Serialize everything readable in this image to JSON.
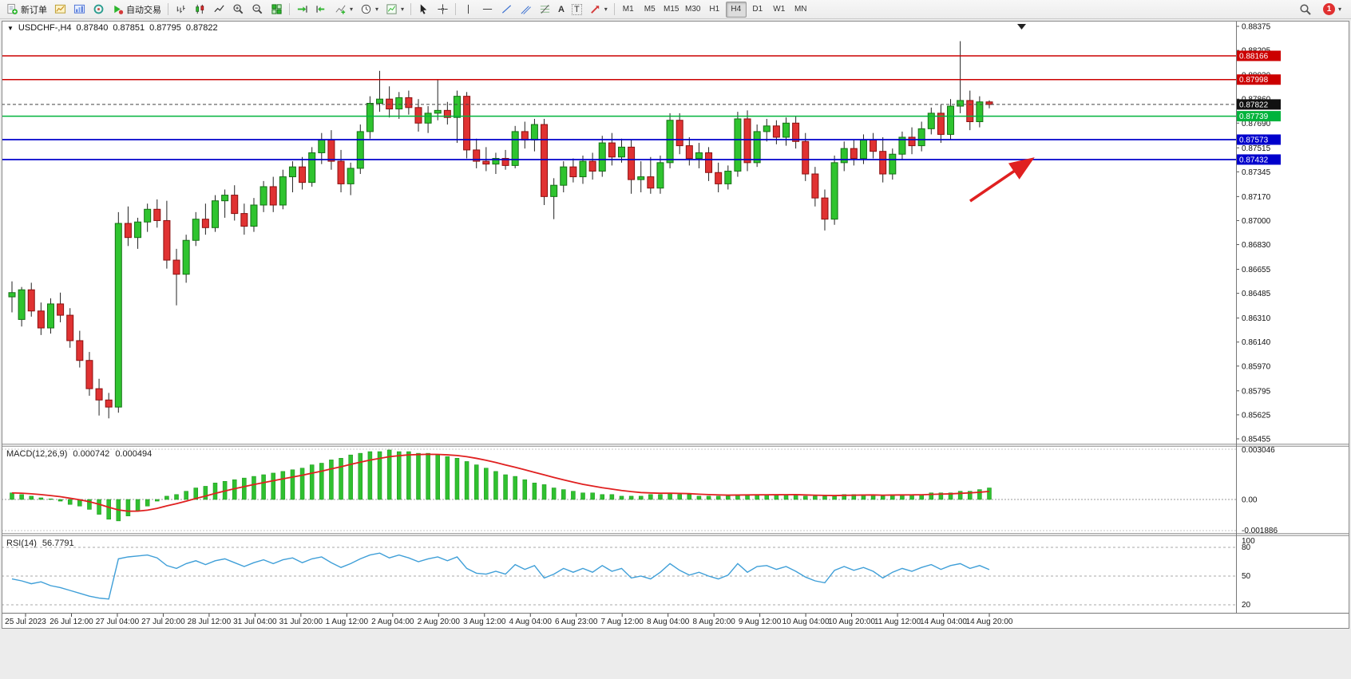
{
  "toolbar": {
    "new_order": "新订单",
    "auto_trading": "自动交易",
    "text_tool": "A",
    "label_tool": "T",
    "timeframes": [
      "M1",
      "M5",
      "M15",
      "M30",
      "H1",
      "H4",
      "D1",
      "W1",
      "MN"
    ],
    "active_timeframe": "H4",
    "notification_count": "1"
  },
  "icons": {
    "caret": "▾",
    "collapse": "▼"
  },
  "chart": {
    "header": {
      "symbol_period": "USDCHF-,H4",
      "open": "0.87840",
      "high": "0.87851",
      "low": "0.87795",
      "close": "0.87822"
    },
    "price_axis": {
      "max": 0.88375,
      "min": 0.85455,
      "ticks": [
        0.88375,
        0.88205,
        0.8803,
        0.8786,
        0.8769,
        0.87515,
        0.87345,
        0.8717,
        0.87,
        0.8683,
        0.86655,
        0.86485,
        0.8631,
        0.8614,
        0.8597,
        0.85795,
        0.85625,
        0.85455
      ]
    },
    "hlines": [
      {
        "label": "0.88166",
        "value": 0.88166,
        "color": "#cc0000"
      },
      {
        "label": "0.87998",
        "value": 0.87998,
        "color": "#cc0000"
      },
      {
        "label": "0.87739",
        "value": 0.87739,
        "color": "#00b33c"
      },
      {
        "label": "0.87573",
        "value": 0.87573,
        "color": "#0000cc"
      },
      {
        "label": "0.87432",
        "value": 0.87432,
        "color": "#0000cc"
      }
    ],
    "current_price": {
      "label": "0.87822",
      "value": 0.87822,
      "line_color": "#444444",
      "badge_color": "#111111"
    },
    "time_labels": [
      "25 Jul 2023",
      "26 Jul 12:00",
      "27 Jul 04:00",
      "27 Jul 20:00",
      "28 Jul 12:00",
      "31 Jul 04:00",
      "31 Jul 20:00",
      "1 Aug 12:00",
      "2 Aug 04:00",
      "2 Aug 20:00",
      "3 Aug 12:00",
      "4 Aug 04:00",
      "6 Aug 23:00",
      "7 Aug 12:00",
      "8 Aug 04:00",
      "8 Aug 20:00",
      "9 Aug 12:00",
      "10 Aug 04:00",
      "10 Aug 20:00",
      "11 Aug 12:00",
      "14 Aug 04:00",
      "14 Aug 20:00"
    ],
    "annotation": {
      "type": "arrow",
      "color": "#e02020"
    },
    "candle_up_color": "#2fc42f",
    "candle_down_color": "#e03232"
  },
  "macd": {
    "title": "MACD(12,26,9)",
    "value_main": "0.000742",
    "value_signal": "0.000494",
    "axis": {
      "max": 0.003046,
      "min": -0.001886,
      "labels": [
        "0.003046",
        "0.00",
        "-0.001886"
      ]
    },
    "histogram_color": "#30c030",
    "signal_color": "#e02020"
  },
  "rsi": {
    "title": "RSI(14)",
    "value": "56.7791",
    "levels": [
      80,
      50,
      20
    ],
    "axis_labels": [
      "100",
      "80",
      "50",
      "20"
    ],
    "line_color": "#3f9fd8"
  },
  "chart_data": {
    "type": "candlestick",
    "symbol": "USDCHF",
    "timeframe": "H4",
    "candles": [
      [
        0.8646,
        0.8657,
        0.8635,
        0.8649
      ],
      [
        0.863,
        0.8653,
        0.8625,
        0.8651
      ],
      [
        0.8651,
        0.8656,
        0.8632,
        0.8636
      ],
      [
        0.8636,
        0.8642,
        0.8619,
        0.8624
      ],
      [
        0.8624,
        0.8645,
        0.862,
        0.8641
      ],
      [
        0.8641,
        0.8649,
        0.8628,
        0.8633
      ],
      [
        0.8633,
        0.8638,
        0.861,
        0.8615
      ],
      [
        0.8615,
        0.8622,
        0.8596,
        0.8601
      ],
      [
        0.8601,
        0.8607,
        0.8576,
        0.8581
      ],
      [
        0.8581,
        0.8588,
        0.8562,
        0.8573
      ],
      [
        0.8573,
        0.8578,
        0.856,
        0.8568
      ],
      [
        0.8568,
        0.8706,
        0.8564,
        0.8698
      ],
      [
        0.8698,
        0.871,
        0.8682,
        0.8688
      ],
      [
        0.8688,
        0.8702,
        0.868,
        0.8699
      ],
      [
        0.8699,
        0.8712,
        0.8692,
        0.8708
      ],
      [
        0.8708,
        0.8715,
        0.8695,
        0.87
      ],
      [
        0.87,
        0.8714,
        0.8666,
        0.8672
      ],
      [
        0.8672,
        0.868,
        0.864,
        0.8662
      ],
      [
        0.8662,
        0.869,
        0.8656,
        0.8686
      ],
      [
        0.8686,
        0.8706,
        0.8682,
        0.8701
      ],
      [
        0.8701,
        0.8712,
        0.869,
        0.8695
      ],
      [
        0.8695,
        0.8718,
        0.8692,
        0.8714
      ],
      [
        0.8714,
        0.8722,
        0.8702,
        0.8718
      ],
      [
        0.8718,
        0.8725,
        0.87,
        0.8705
      ],
      [
        0.8705,
        0.8712,
        0.869,
        0.8696
      ],
      [
        0.8696,
        0.8716,
        0.8692,
        0.8711
      ],
      [
        0.8711,
        0.8728,
        0.8706,
        0.8724
      ],
      [
        0.8724,
        0.8731,
        0.8706,
        0.8711
      ],
      [
        0.8711,
        0.8736,
        0.8708,
        0.8731
      ],
      [
        0.8731,
        0.8742,
        0.872,
        0.8738
      ],
      [
        0.8738,
        0.8745,
        0.8722,
        0.8727
      ],
      [
        0.8727,
        0.8752,
        0.8724,
        0.8748
      ],
      [
        0.8748,
        0.8762,
        0.874,
        0.8757
      ],
      [
        0.8757,
        0.8764,
        0.8736,
        0.8742
      ],
      [
        0.8742,
        0.875,
        0.872,
        0.8726
      ],
      [
        0.8726,
        0.8741,
        0.8718,
        0.8737
      ],
      [
        0.8737,
        0.8768,
        0.8733,
        0.8763
      ],
      [
        0.8763,
        0.8788,
        0.8758,
        0.8783
      ],
      [
        0.8783,
        0.8806,
        0.8777,
        0.8786
      ],
      [
        0.8786,
        0.8795,
        0.8773,
        0.8779
      ],
      [
        0.8779,
        0.8791,
        0.8772,
        0.8787
      ],
      [
        0.8787,
        0.8792,
        0.8775,
        0.878
      ],
      [
        0.878,
        0.8786,
        0.8763,
        0.8769
      ],
      [
        0.8769,
        0.8781,
        0.8762,
        0.8776
      ],
      [
        0.8776,
        0.88,
        0.8771,
        0.8778
      ],
      [
        0.8778,
        0.8784,
        0.8768,
        0.8773
      ],
      [
        0.8773,
        0.8792,
        0.8755,
        0.8788
      ],
      [
        0.8788,
        0.8791,
        0.8744,
        0.875
      ],
      [
        0.875,
        0.8758,
        0.8737,
        0.8742
      ],
      [
        0.8742,
        0.8752,
        0.8735,
        0.874
      ],
      [
        0.874,
        0.8748,
        0.8733,
        0.8744
      ],
      [
        0.8744,
        0.875,
        0.8736,
        0.8739
      ],
      [
        0.8739,
        0.8767,
        0.8737,
        0.8763
      ],
      [
        0.8763,
        0.877,
        0.8751,
        0.8757
      ],
      [
        0.8757,
        0.8772,
        0.8749,
        0.8768
      ],
      [
        0.8768,
        0.8772,
        0.8711,
        0.8717
      ],
      [
        0.8717,
        0.873,
        0.8701,
        0.8725
      ],
      [
        0.8725,
        0.8742,
        0.872,
        0.8738
      ],
      [
        0.8738,
        0.8744,
        0.8727,
        0.8731
      ],
      [
        0.8731,
        0.8746,
        0.8726,
        0.8742
      ],
      [
        0.8742,
        0.8748,
        0.8729,
        0.8735
      ],
      [
        0.8735,
        0.876,
        0.8731,
        0.8755
      ],
      [
        0.8755,
        0.8762,
        0.8739,
        0.8745
      ],
      [
        0.8745,
        0.8758,
        0.8741,
        0.8752
      ],
      [
        0.8752,
        0.8757,
        0.8719,
        0.8729
      ],
      [
        0.8729,
        0.8742,
        0.872,
        0.8731
      ],
      [
        0.8731,
        0.8745,
        0.8719,
        0.8723
      ],
      [
        0.8723,
        0.8746,
        0.8719,
        0.8741
      ],
      [
        0.8741,
        0.8776,
        0.8737,
        0.8771
      ],
      [
        0.8771,
        0.8776,
        0.8747,
        0.8753
      ],
      [
        0.8753,
        0.8759,
        0.8739,
        0.8744
      ],
      [
        0.8744,
        0.8755,
        0.8737,
        0.8748
      ],
      [
        0.8748,
        0.8752,
        0.8728,
        0.8734
      ],
      [
        0.8734,
        0.8741,
        0.872,
        0.8726
      ],
      [
        0.8726,
        0.8739,
        0.8722,
        0.8735
      ],
      [
        0.8735,
        0.8777,
        0.8731,
        0.8772
      ],
      [
        0.8772,
        0.8778,
        0.8735,
        0.8741
      ],
      [
        0.8741,
        0.8768,
        0.8738,
        0.8763
      ],
      [
        0.8763,
        0.8772,
        0.8756,
        0.8767
      ],
      [
        0.8767,
        0.8771,
        0.8754,
        0.8759
      ],
      [
        0.8759,
        0.8773,
        0.8753,
        0.8769
      ],
      [
        0.8769,
        0.8774,
        0.8751,
        0.8756
      ],
      [
        0.8756,
        0.8762,
        0.8728,
        0.8733
      ],
      [
        0.8733,
        0.8738,
        0.871,
        0.8716
      ],
      [
        0.8716,
        0.8722,
        0.8693,
        0.8701
      ],
      [
        0.8701,
        0.8746,
        0.8697,
        0.8741
      ],
      [
        0.8741,
        0.8756,
        0.8735,
        0.8751
      ],
      [
        0.8751,
        0.8757,
        0.8739,
        0.8744
      ],
      [
        0.8744,
        0.8761,
        0.874,
        0.8757
      ],
      [
        0.8757,
        0.8762,
        0.8744,
        0.8749
      ],
      [
        0.8749,
        0.8759,
        0.8727,
        0.8733
      ],
      [
        0.8733,
        0.8751,
        0.8729,
        0.8747
      ],
      [
        0.8747,
        0.8763,
        0.8743,
        0.8759
      ],
      [
        0.8759,
        0.8766,
        0.8747,
        0.8753
      ],
      [
        0.8753,
        0.877,
        0.8749,
        0.8765
      ],
      [
        0.8765,
        0.878,
        0.8761,
        0.8776
      ],
      [
        0.8776,
        0.8782,
        0.8755,
        0.8761
      ],
      [
        0.8761,
        0.8786,
        0.8757,
        0.8781
      ],
      [
        0.8781,
        0.8827,
        0.8776,
        0.8785
      ],
      [
        0.8785,
        0.8792,
        0.8764,
        0.877
      ],
      [
        0.877,
        0.8788,
        0.8766,
        0.8784
      ],
      [
        0.8784,
        0.87851,
        0.87795,
        0.87822
      ]
    ],
    "macd_histogram": [
      0.0004,
      0.0003,
      0.0002,
      0.0001,
      0.0,
      -0.0001,
      -0.0003,
      -0.0004,
      -0.0006,
      -0.0009,
      -0.0012,
      -0.0013,
      -0.001,
      -0.0007,
      -0.0004,
      -0.0001,
      0.0002,
      0.0003,
      0.0005,
      0.0007,
      0.0008,
      0.001,
      0.0011,
      0.0012,
      0.0013,
      0.0014,
      0.0015,
      0.0016,
      0.0017,
      0.0018,
      0.0019,
      0.0021,
      0.0022,
      0.0024,
      0.0025,
      0.0027,
      0.0028,
      0.0029,
      0.0029,
      0.003,
      0.0029,
      0.0029,
      0.0028,
      0.0028,
      0.0027,
      0.0026,
      0.0025,
      0.0023,
      0.0021,
      0.0019,
      0.0017,
      0.0015,
      0.0014,
      0.0012,
      0.001,
      0.0009,
      0.0007,
      0.0006,
      0.0005,
      0.0004,
      0.0004,
      0.0003,
      0.0003,
      0.0002,
      0.0002,
      0.0002,
      0.0003,
      0.0003,
      0.0004,
      0.0003,
      0.0003,
      0.0002,
      0.0002,
      0.0002,
      0.0002,
      0.0003,
      0.0003,
      0.0003,
      0.0003,
      0.0003,
      0.0003,
      0.0003,
      0.0002,
      0.0002,
      0.0002,
      0.0002,
      0.0003,
      0.0003,
      0.0003,
      0.0003,
      0.0002,
      0.0003,
      0.0003,
      0.0003,
      0.0003,
      0.0004,
      0.0004,
      0.0004,
      0.0005,
      0.0005,
      0.0006,
      0.0007
    ],
    "rsi": [
      47,
      45,
      42,
      44,
      40,
      38,
      35,
      32,
      29,
      27,
      26,
      68,
      70,
      71,
      72,
      69,
      61,
      58,
      63,
      66,
      62,
      66,
      68,
      64,
      60,
      64,
      67,
      63,
      67,
      69,
      64,
      68,
      70,
      64,
      59,
      63,
      68,
      72,
      74,
      69,
      72,
      69,
      65,
      68,
      70,
      66,
      70,
      58,
      53,
      52,
      55,
      52,
      62,
      57,
      61,
      48,
      52,
      58,
      54,
      58,
      54,
      61,
      55,
      58,
      48,
      50,
      47,
      54,
      63,
      56,
      51,
      54,
      50,
      47,
      51,
      63,
      54,
      60,
      61,
      57,
      60,
      55,
      49,
      45,
      43,
      56,
      60,
      56,
      59,
      55,
      48,
      54,
      58,
      55,
      59,
      62,
      57,
      61,
      63,
      58,
      61,
      56.78
    ]
  }
}
